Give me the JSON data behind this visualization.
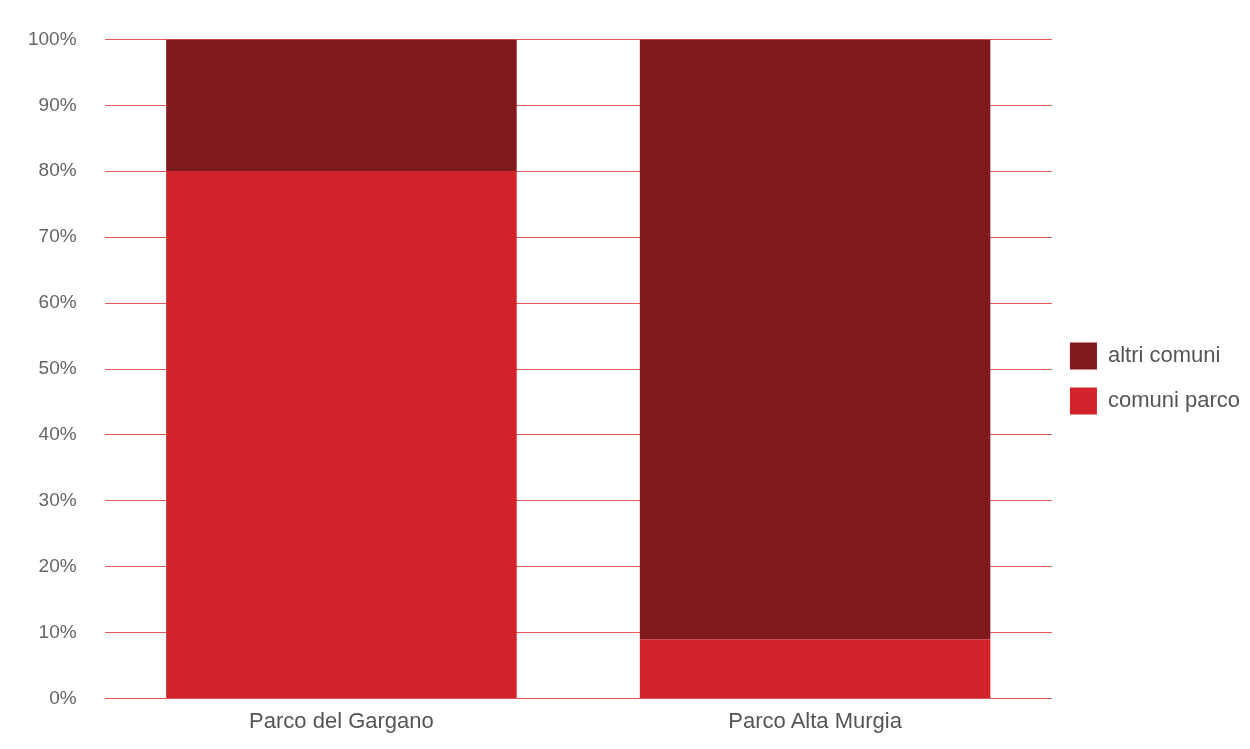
{
  "chart_data": {
    "type": "bar",
    "stacked": true,
    "categories": [
      "Parco del Gargano",
      "Parco Alta Murgia"
    ],
    "series": [
      {
        "name": "comuni parco",
        "color": "#d2232a",
        "values": [
          80,
          9
        ]
      },
      {
        "name": "altri comuni",
        "color": "#80181c",
        "values": [
          20,
          91
        ]
      }
    ],
    "ylim": [
      0,
      100
    ],
    "yticks": [
      {
        "value": 0,
        "label": "0%"
      },
      {
        "value": 10,
        "label": "10%"
      },
      {
        "value": 20,
        "label": "20%"
      },
      {
        "value": 30,
        "label": "30%"
      },
      {
        "value": 40,
        "label": "40%"
      },
      {
        "value": 50,
        "label": "50%"
      },
      {
        "value": 60,
        "label": "60%"
      },
      {
        "value": 70,
        "label": "70%"
      },
      {
        "value": 80,
        "label": "80%"
      },
      {
        "value": 90,
        "label": "90%"
      },
      {
        "value": 100,
        "label": "100%"
      }
    ],
    "grid": "y",
    "legend": "right"
  }
}
